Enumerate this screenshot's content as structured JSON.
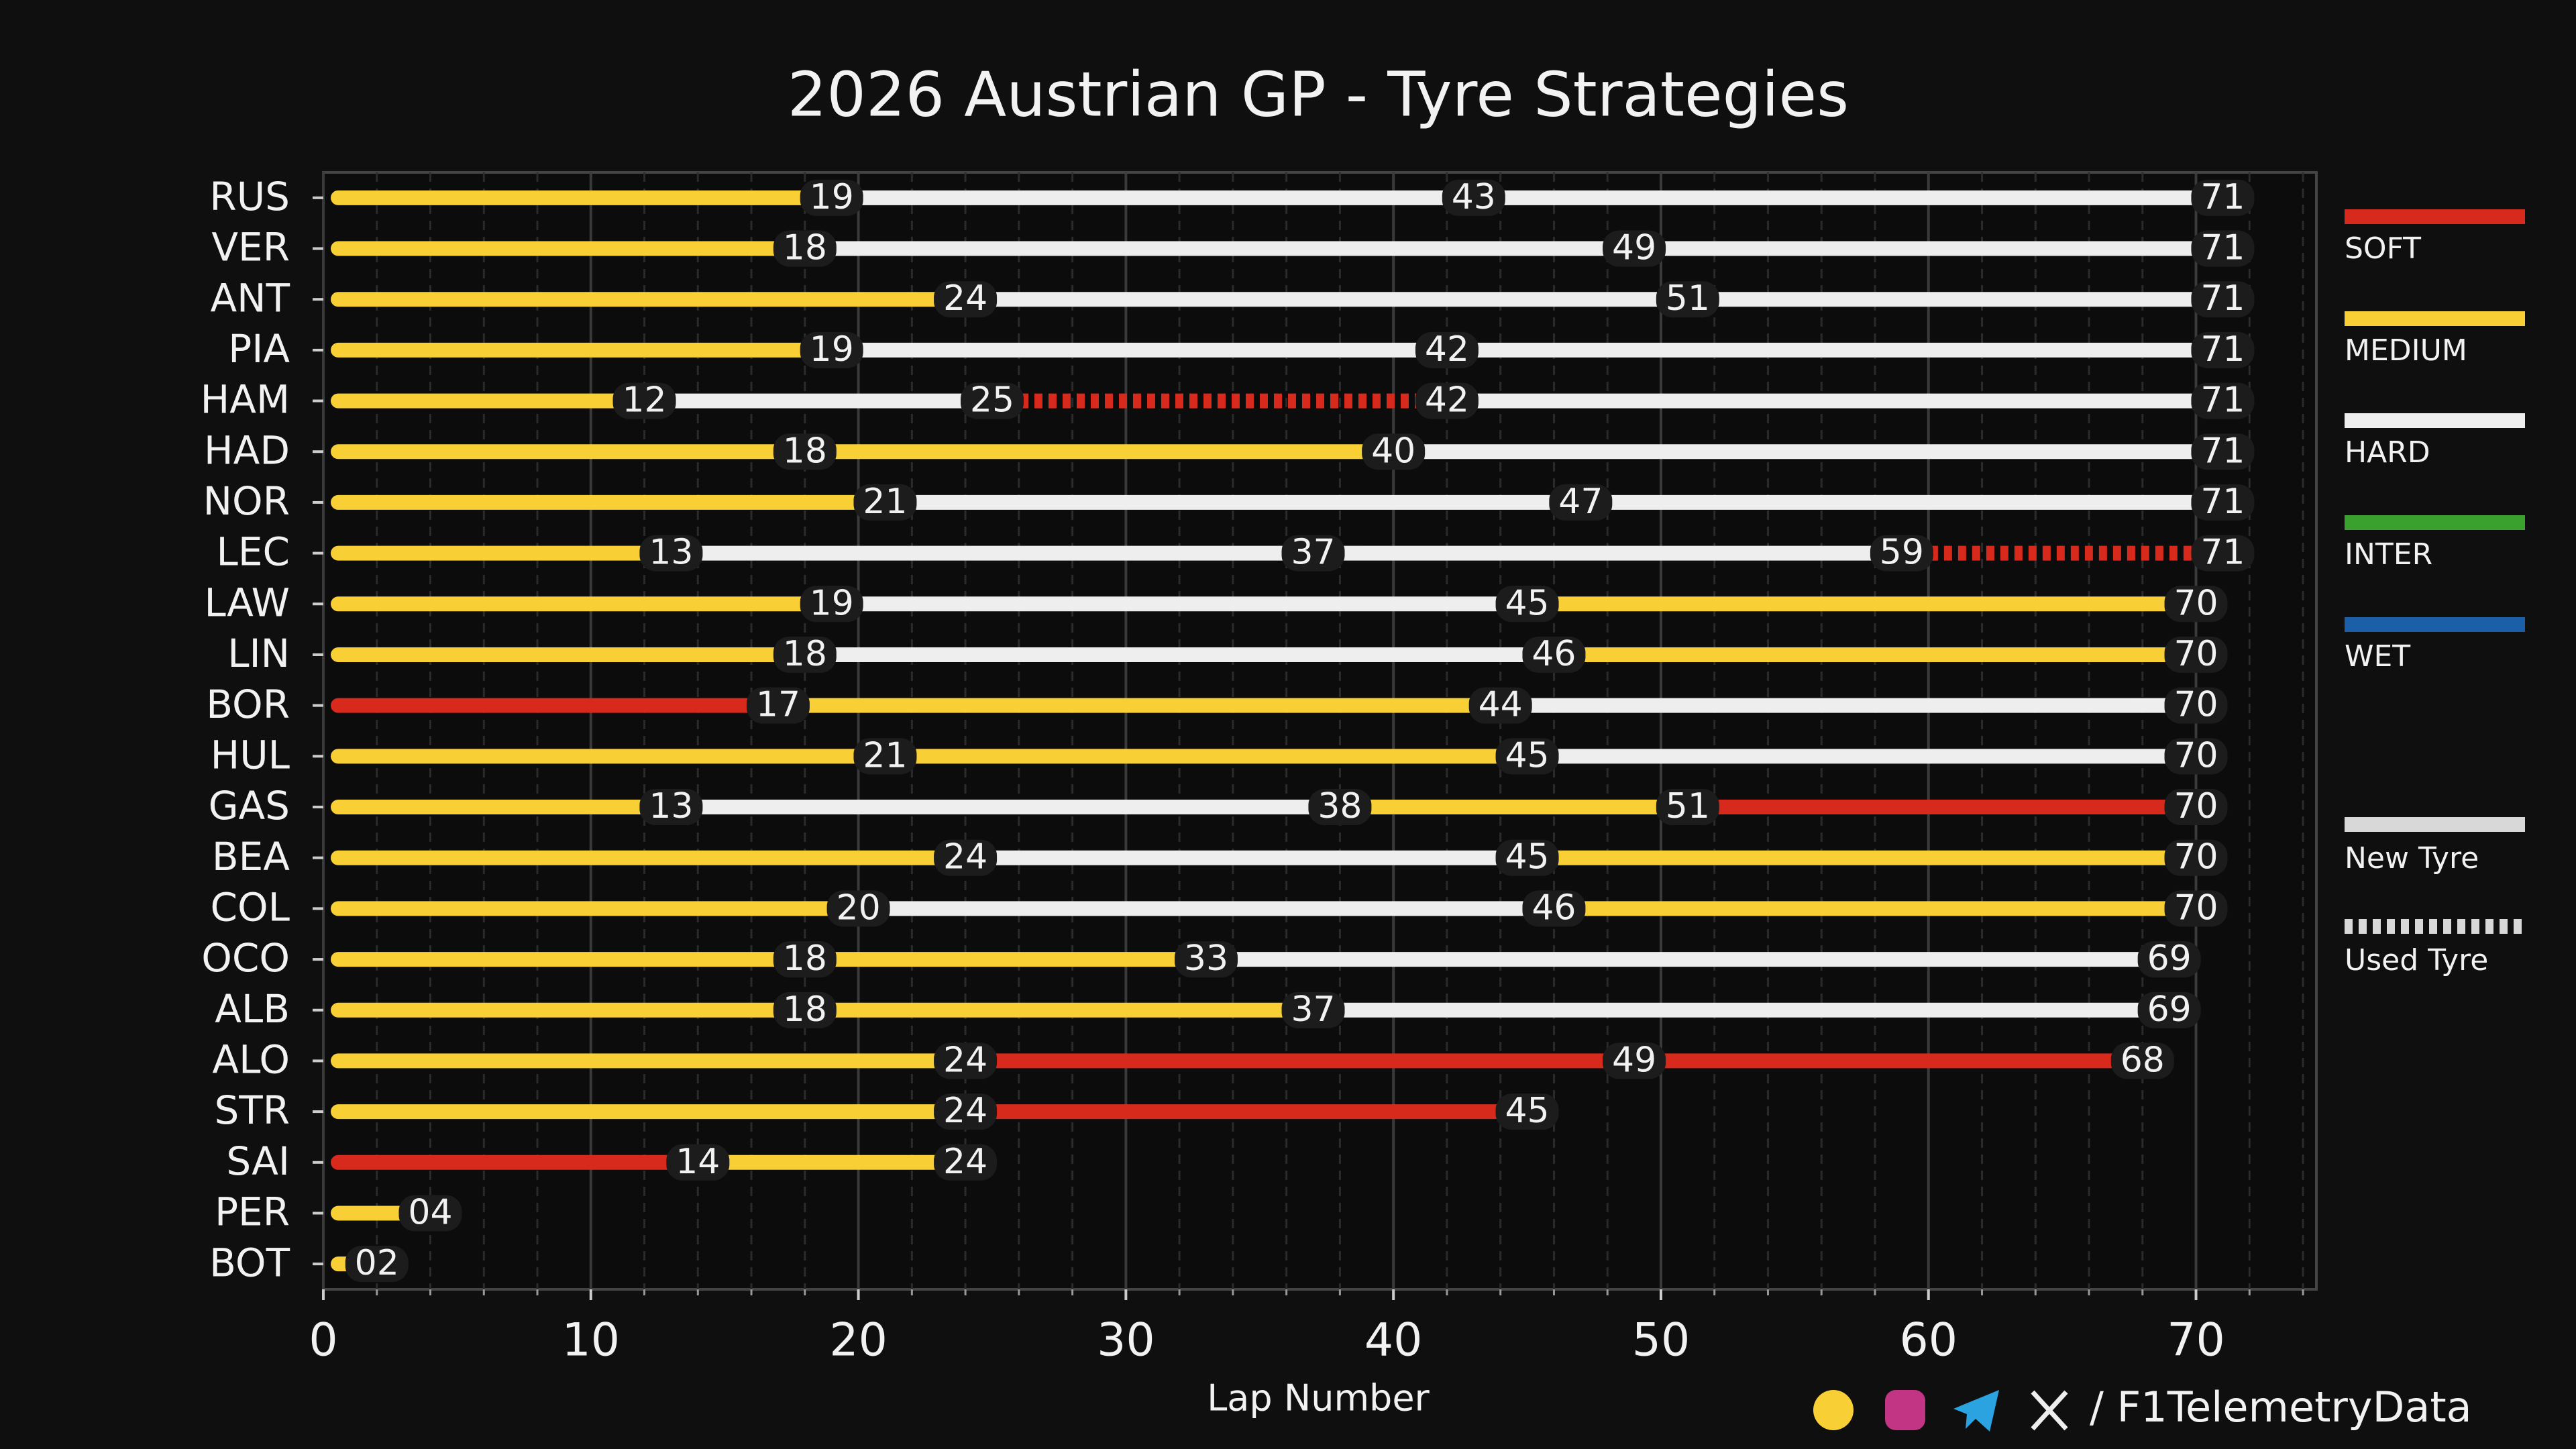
{
  "chart_data": {
    "type": "stint",
    "title": "2026 Austrian GP - Tyre Strategies",
    "x_label": "Lap Number",
    "xlim": [
      0,
      74.5
    ],
    "xticks": [
      0,
      10,
      20,
      30,
      40,
      50,
      60,
      70
    ],
    "grid": true,
    "legend": [
      {
        "name": "SOFT",
        "color": "#d8291d"
      },
      {
        "name": "MEDIUM",
        "color": "#f8d035"
      },
      {
        "name": "HARD",
        "color": "#eeeeee"
      },
      {
        "name": "INTER",
        "color": "#3aa12f"
      },
      {
        "name": "WET",
        "color": "#1b5fa8"
      }
    ],
    "tyre_age_legend": [
      "New Tyre",
      "Used Tyre"
    ],
    "drivers": [
      {
        "name": "RUS",
        "stints": [
          {
            "compound": "MEDIUM",
            "end": 19,
            "used": false
          },
          {
            "compound": "HARD",
            "end": 43,
            "used": false
          },
          {
            "compound": "HARD",
            "end": 71,
            "used": false
          }
        ]
      },
      {
        "name": "VER",
        "stints": [
          {
            "compound": "MEDIUM",
            "end": 18,
            "used": false
          },
          {
            "compound": "HARD",
            "end": 49,
            "used": false
          },
          {
            "compound": "HARD",
            "end": 71,
            "used": false
          }
        ]
      },
      {
        "name": "ANT",
        "stints": [
          {
            "compound": "MEDIUM",
            "end": 24,
            "used": false
          },
          {
            "compound": "HARD",
            "end": 51,
            "used": false
          },
          {
            "compound": "HARD",
            "end": 71,
            "used": false
          }
        ]
      },
      {
        "name": "PIA",
        "stints": [
          {
            "compound": "MEDIUM",
            "end": 19,
            "used": false
          },
          {
            "compound": "HARD",
            "end": 42,
            "used": false
          },
          {
            "compound": "HARD",
            "end": 71,
            "used": false
          }
        ]
      },
      {
        "name": "HAM",
        "stints": [
          {
            "compound": "MEDIUM",
            "end": 12,
            "used": false
          },
          {
            "compound": "HARD",
            "end": 25,
            "used": false
          },
          {
            "compound": "SOFT",
            "end": 42,
            "used": true
          },
          {
            "compound": "HARD",
            "end": 71,
            "used": false
          }
        ]
      },
      {
        "name": "HAD",
        "stints": [
          {
            "compound": "MEDIUM",
            "end": 18,
            "used": false
          },
          {
            "compound": "MEDIUM",
            "end": 40,
            "used": false
          },
          {
            "compound": "HARD",
            "end": 71,
            "used": false
          }
        ]
      },
      {
        "name": "NOR",
        "stints": [
          {
            "compound": "MEDIUM",
            "end": 21,
            "used": false
          },
          {
            "compound": "HARD",
            "end": 47,
            "used": false
          },
          {
            "compound": "HARD",
            "end": 71,
            "used": false
          }
        ]
      },
      {
        "name": "LEC",
        "stints": [
          {
            "compound": "MEDIUM",
            "end": 13,
            "used": false
          },
          {
            "compound": "HARD",
            "end": 37,
            "used": false
          },
          {
            "compound": "HARD",
            "end": 59,
            "used": false
          },
          {
            "compound": "SOFT",
            "end": 71,
            "used": true
          }
        ]
      },
      {
        "name": "LAW",
        "stints": [
          {
            "compound": "MEDIUM",
            "end": 19,
            "used": false
          },
          {
            "compound": "HARD",
            "end": 45,
            "used": false
          },
          {
            "compound": "MEDIUM",
            "end": 70,
            "used": false
          }
        ]
      },
      {
        "name": "LIN",
        "stints": [
          {
            "compound": "MEDIUM",
            "end": 18,
            "used": false
          },
          {
            "compound": "HARD",
            "end": 46,
            "used": false
          },
          {
            "compound": "MEDIUM",
            "end": 70,
            "used": false
          }
        ]
      },
      {
        "name": "BOR",
        "stints": [
          {
            "compound": "SOFT",
            "end": 17,
            "used": false
          },
          {
            "compound": "MEDIUM",
            "end": 44,
            "used": false
          },
          {
            "compound": "HARD",
            "end": 70,
            "used": false
          }
        ]
      },
      {
        "name": "HUL",
        "stints": [
          {
            "compound": "MEDIUM",
            "end": 21,
            "used": false
          },
          {
            "compound": "MEDIUM",
            "end": 45,
            "used": false
          },
          {
            "compound": "HARD",
            "end": 70,
            "used": false
          }
        ]
      },
      {
        "name": "GAS",
        "stints": [
          {
            "compound": "MEDIUM",
            "end": 13,
            "used": false
          },
          {
            "compound": "HARD",
            "end": 38,
            "used": false
          },
          {
            "compound": "MEDIUM",
            "end": 51,
            "used": false
          },
          {
            "compound": "SOFT",
            "end": 70,
            "used": false
          }
        ]
      },
      {
        "name": "BEA",
        "stints": [
          {
            "compound": "MEDIUM",
            "end": 24,
            "used": false
          },
          {
            "compound": "HARD",
            "end": 45,
            "used": false
          },
          {
            "compound": "MEDIUM",
            "end": 70,
            "used": false
          }
        ]
      },
      {
        "name": "COL",
        "stints": [
          {
            "compound": "MEDIUM",
            "end": 20,
            "used": false
          },
          {
            "compound": "HARD",
            "end": 46,
            "used": false
          },
          {
            "compound": "MEDIUM",
            "end": 70,
            "used": false
          }
        ]
      },
      {
        "name": "OCO",
        "stints": [
          {
            "compound": "MEDIUM",
            "end": 18,
            "used": false
          },
          {
            "compound": "MEDIUM",
            "end": 33,
            "used": false
          },
          {
            "compound": "HARD",
            "end": 69,
            "used": false
          }
        ]
      },
      {
        "name": "ALB",
        "stints": [
          {
            "compound": "MEDIUM",
            "end": 18,
            "used": false
          },
          {
            "compound": "MEDIUM",
            "end": 37,
            "used": false
          },
          {
            "compound": "HARD",
            "end": 69,
            "used": false
          }
        ]
      },
      {
        "name": "ALO",
        "stints": [
          {
            "compound": "MEDIUM",
            "end": 24,
            "used": false
          },
          {
            "compound": "SOFT",
            "end": 49,
            "used": false
          },
          {
            "compound": "SOFT",
            "end": 68,
            "used": false
          }
        ]
      },
      {
        "name": "STR",
        "stints": [
          {
            "compound": "MEDIUM",
            "end": 24,
            "used": false
          },
          {
            "compound": "SOFT",
            "end": 45,
            "used": false
          }
        ]
      },
      {
        "name": "SAI",
        "stints": [
          {
            "compound": "SOFT",
            "end": 14,
            "used": false
          },
          {
            "compound": "MEDIUM",
            "end": 24,
            "used": false
          }
        ]
      },
      {
        "name": "PER",
        "stints": [
          {
            "compound": "MEDIUM",
            "end": 4,
            "label": "04",
            "used": false
          }
        ]
      },
      {
        "name": "BOT",
        "stints": [
          {
            "compound": "MEDIUM",
            "end": 2,
            "label": "02",
            "used": false
          }
        ]
      }
    ]
  },
  "footer": {
    "handle": "/ F1TelemetryData"
  }
}
